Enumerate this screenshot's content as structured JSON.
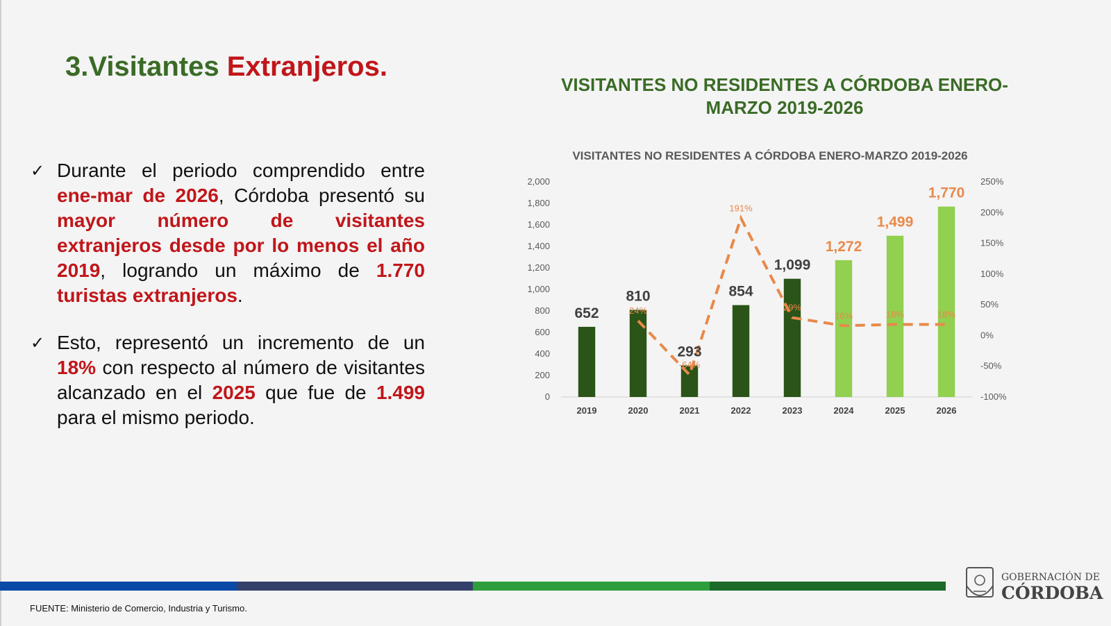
{
  "slide": {
    "title_part1": "3.Visitantes ",
    "title_part2": "Extranjeros.",
    "check_glyph": "✓"
  },
  "bullet1": [
    {
      "text": "Durante el periodo comprendido entre ",
      "hl": false
    },
    {
      "text": "ene-mar de 2026",
      "hl": true
    },
    {
      "text": ", Córdoba presentó su ",
      "hl": false
    },
    {
      "text": "mayor número de visitantes extranjeros desde por lo menos el año 2019",
      "hl": true
    },
    {
      "text": ", logrando un máximo de ",
      "hl": false
    },
    {
      "text": "1.770 turistas extranjeros",
      "hl": true
    },
    {
      "text": ".",
      "hl": false
    }
  ],
  "bullet2": [
    {
      "text": "Esto, representó un incremento de un ",
      "hl": false
    },
    {
      "text": "18%",
      "hl": true
    },
    {
      "text": " con respecto al número de visitantes alcanzado en el ",
      "hl": false
    },
    {
      "text": "2025",
      "hl": true
    },
    {
      "text": " que fue de ",
      "hl": false
    },
    {
      "text": "1.499",
      "hl": true
    },
    {
      "text": " para el mismo periodo.",
      "hl": false
    }
  ],
  "chart_heading": "VISITANTES NO RESIDENTES A CÓRDOBA ENERO-MARZO 2019-2026",
  "chart_data": {
    "type": "bar",
    "title": "VISITANTES NO RESIDENTES A CÓRDOBA ENERO-MARZO 2019-2026",
    "categories": [
      "2019",
      "2020",
      "2021",
      "2022",
      "2023",
      "2024",
      "2025",
      "2026"
    ],
    "series": [
      {
        "values": [
          652,
          810,
          293,
          854,
          1099,
          1272,
          1499,
          1770
        ],
        "value_labels": [
          "652",
          "810",
          "293",
          "854",
          "1,099",
          "1,272",
          "1,499",
          "1,770"
        ],
        "axis": "left"
      },
      {
        "type": "line",
        "style": "dashed",
        "values": [
          null,
          24,
          -64,
          191,
          29,
          16,
          18,
          18
        ],
        "value_labels": [
          "",
          "24%",
          "-64%",
          "191%",
          "29%",
          "16%",
          "18%",
          "18%"
        ],
        "axis": "right"
      }
    ],
    "bar_colors": [
      "#2b5418",
      "#2b5418",
      "#2b5418",
      "#2b5418",
      "#2b5418",
      "#92d050",
      "#92d050",
      "#92d050"
    ],
    "bar_label_colors": [
      "#404040",
      "#404040",
      "#404040",
      "#404040",
      "#404040",
      "#e8894a",
      "#e8894a",
      "#e8894a"
    ],
    "line_color": "#e8894a",
    "ylim": [
      0,
      2000
    ],
    "yticks": [
      0,
      200,
      400,
      600,
      800,
      1000,
      1200,
      1400,
      1600,
      1800,
      2000
    ],
    "ytick_labels": [
      "0",
      "200",
      "400",
      "600",
      "800",
      "1,000",
      "1,200",
      "1,400",
      "1,600",
      "1,800",
      "2,000"
    ],
    "y2lim": [
      -100,
      250
    ],
    "y2ticks": [
      -100,
      -50,
      0,
      50,
      100,
      150,
      200,
      250
    ],
    "y2tick_labels": [
      "-100%",
      "-50%",
      "0%",
      "50%",
      "100%",
      "150%",
      "200%",
      "250%"
    ],
    "grid": false
  },
  "footer": {
    "source": "FUENTE: Ministerio de Comercio, Industria y Turismo.",
    "stripe_colors": [
      "#0a4aa6",
      "#35406a",
      "#2e9e3c",
      "#1d6b2b"
    ],
    "logo_line1": "GOBERNACIÓN DE",
    "logo_line2": "CÓRDOBA"
  }
}
